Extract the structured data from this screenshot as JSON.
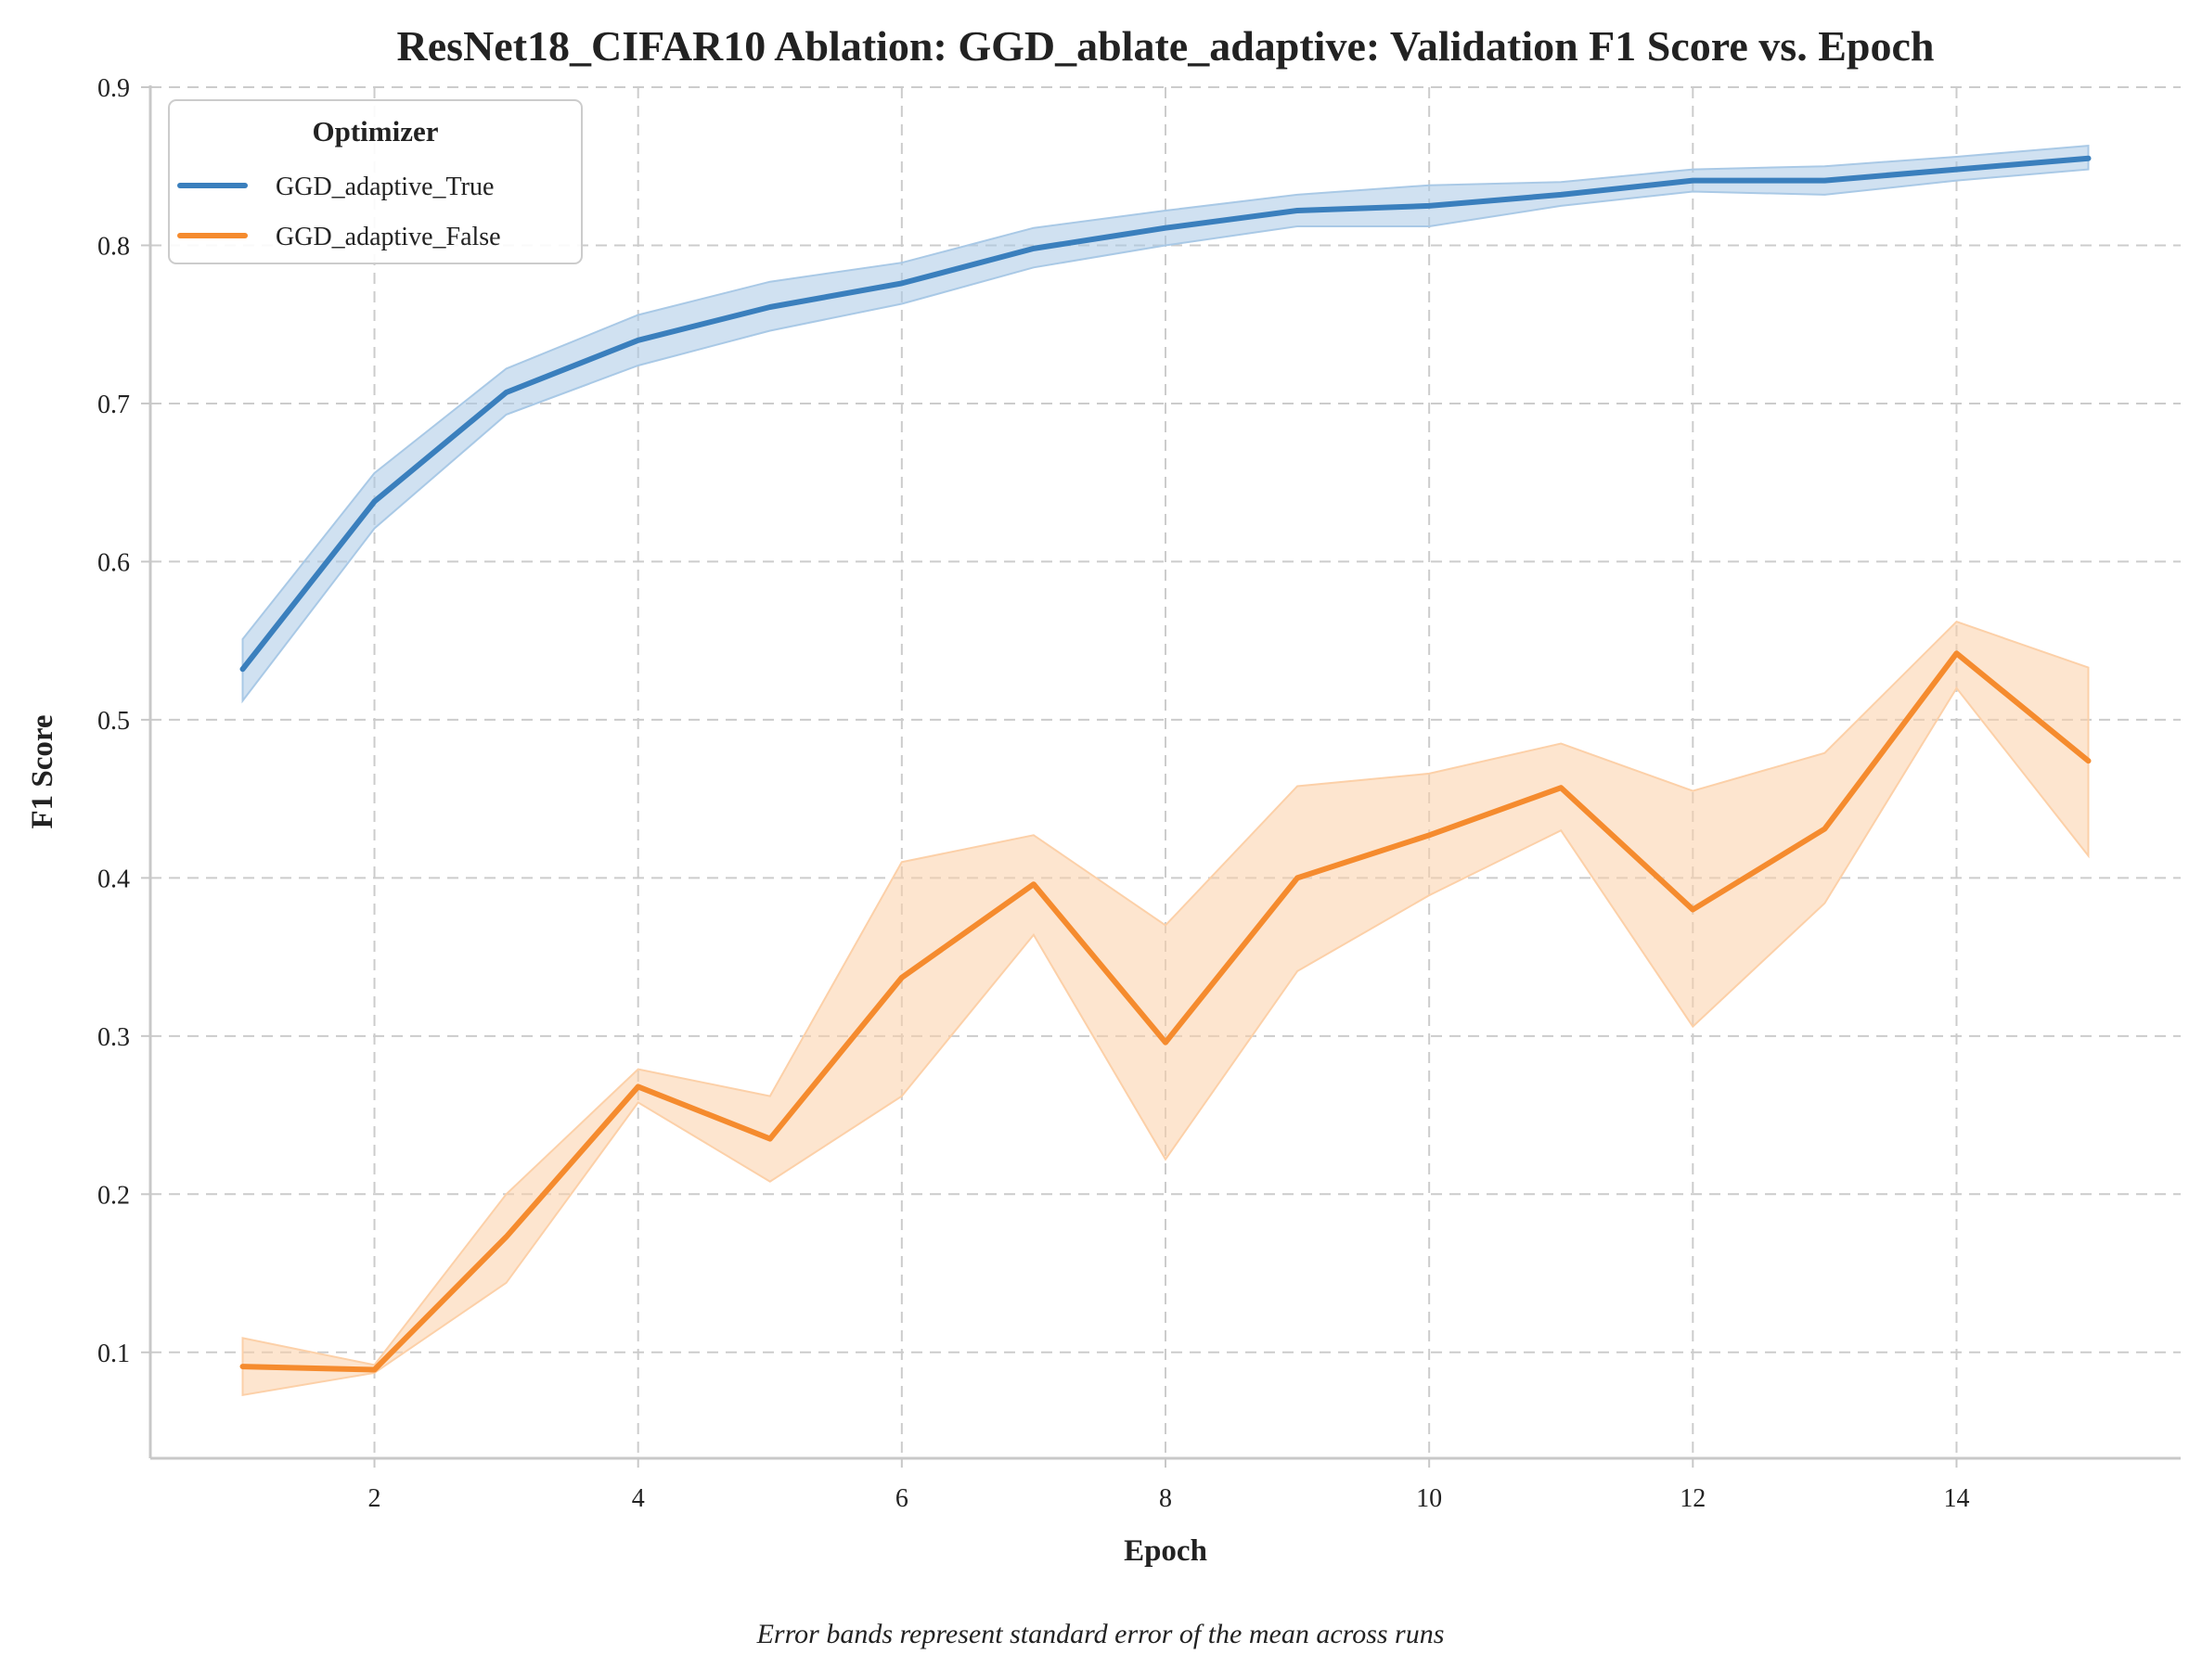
{
  "chart_data": {
    "type": "line",
    "title": "ResNet18_CIFAR10 Ablation: GGD_ablate_adaptive: Validation F1 Score vs. Epoch",
    "xlabel": "Epoch",
    "ylabel": "F1 Score",
    "caption": "Error bands represent standard error of the mean across runs",
    "xlim": [
      0.3,
      15.7
    ],
    "ylim": [
      0.033,
      0.9
    ],
    "xticks": [
      2,
      4,
      6,
      8,
      10,
      12,
      14
    ],
    "yticks": [
      0.1,
      0.2,
      0.3,
      0.4,
      0.5,
      0.6,
      0.7,
      0.8,
      0.9
    ],
    "grid": true,
    "legend": {
      "title": "Optimizer",
      "placement": "top-left"
    },
    "x": [
      1,
      2,
      3,
      4,
      5,
      6,
      7,
      8,
      9,
      10,
      11,
      12,
      13,
      14,
      15
    ],
    "series": [
      {
        "name": "GGD_adaptive_True",
        "color": "#3a7fbd",
        "band_color": "#a9c9e6",
        "values": [
          0.532,
          0.638,
          0.707,
          0.74,
          0.761,
          0.776,
          0.798,
          0.811,
          0.822,
          0.825,
          0.832,
          0.841,
          0.841,
          0.848,
          0.855
        ],
        "lower": [
          0.512,
          0.621,
          0.693,
          0.724,
          0.746,
          0.763,
          0.786,
          0.8,
          0.812,
          0.812,
          0.825,
          0.834,
          0.832,
          0.841,
          0.848
        ],
        "upper": [
          0.551,
          0.656,
          0.722,
          0.756,
          0.777,
          0.789,
          0.811,
          0.822,
          0.832,
          0.838,
          0.84,
          0.848,
          0.85,
          0.856,
          0.863
        ]
      },
      {
        "name": "GGD_adaptive_False",
        "color": "#f58b2e",
        "band_color": "#fcd0a8",
        "values": [
          0.091,
          0.089,
          0.173,
          0.268,
          0.235,
          0.337,
          0.396,
          0.296,
          0.4,
          0.427,
          0.457,
          0.38,
          0.431,
          0.542,
          0.474
        ],
        "lower": [
          0.073,
          0.087,
          0.144,
          0.258,
          0.208,
          0.262,
          0.364,
          0.222,
          0.341,
          0.389,
          0.43,
          0.306,
          0.384,
          0.52,
          0.414
        ],
        "upper": [
          0.109,
          0.092,
          0.2,
          0.279,
          0.262,
          0.41,
          0.427,
          0.37,
          0.458,
          0.466,
          0.485,
          0.455,
          0.479,
          0.562,
          0.533
        ]
      }
    ]
  }
}
